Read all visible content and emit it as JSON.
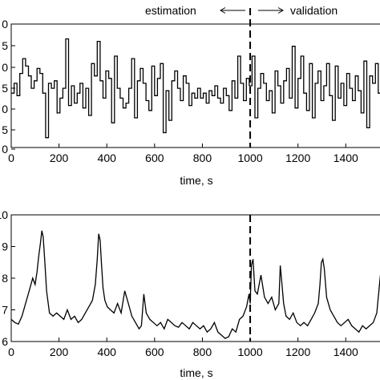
{
  "chart_data": [
    {
      "type": "line",
      "subtype": "step",
      "xlabel": "time, s",
      "ylabel": "",
      "xlim": [
        0,
        1550
      ],
      "ylim": [
        0,
        5
      ],
      "x_ticks": [
        0,
        200,
        400,
        600,
        800,
        1000,
        1200,
        1400
      ],
      "y_tick_labels": [
        "0",
        "5",
        "0",
        "5",
        "0",
        "5",
        "0"
      ],
      "grid": false,
      "annotations": {
        "divider_x": 1000,
        "estimation_label": "estimation",
        "validation_label": "validation"
      },
      "series": [
        {
          "x": [
            0,
            12,
            24,
            36,
            48,
            60,
            72,
            84,
            96,
            108,
            120,
            132,
            144,
            156,
            168,
            180,
            192,
            204,
            216,
            228,
            240,
            252,
            264,
            276,
            288,
            300,
            312,
            324,
            336,
            348,
            360,
            372,
            384,
            396,
            408,
            420,
            432,
            444,
            456,
            468,
            480,
            492,
            504,
            516,
            528,
            540,
            552,
            564,
            576,
            588,
            600,
            612,
            624,
            636,
            648,
            660,
            672,
            684,
            696,
            708,
            720,
            732,
            744,
            756,
            768,
            780,
            792,
            804,
            816,
            828,
            840,
            852,
            864,
            876,
            888,
            900,
            912,
            924,
            936,
            948,
            960,
            972,
            984,
            996,
            1008,
            1020,
            1032,
            1044,
            1056,
            1068,
            1080,
            1092,
            1104,
            1116,
            1128,
            1140,
            1152,
            1164,
            1176,
            1188,
            1200,
            1212,
            1224,
            1236,
            1248,
            1260,
            1272,
            1284,
            1296,
            1308,
            1320,
            1332,
            1344,
            1356,
            1368,
            1380,
            1392,
            1404,
            1416,
            1428,
            1440,
            1452,
            1464,
            1476,
            1488,
            1500,
            1512,
            1524,
            1536,
            1548
          ],
          "y": [
            2.2,
            2.6,
            2.1,
            3.0,
            3.6,
            3.3,
            2.9,
            2.4,
            2.7,
            3.2,
            3.0,
            2.2,
            0.4,
            2.6,
            2.4,
            2.7,
            1.4,
            2.0,
            2.4,
            4.4,
            1.7,
            2.5,
            1.8,
            2.2,
            2.6,
            1.6,
            2.4,
            1.3,
            3.4,
            2.9,
            4.3,
            2.7,
            2.0,
            3.1,
            2.8,
            1.0,
            3.7,
            2.4,
            2.0,
            1.6,
            1.8,
            2.4,
            3.6,
            1.2,
            2.7,
            3.2,
            2.6,
            1.9,
            1.5,
            3.3,
            2.1,
            2.8,
            3.4,
            0.6,
            2.3,
            1.1,
            2.7,
            3.1,
            2.4,
            1.9,
            2.9,
            2.6,
            1.7,
            2.2,
            2.0,
            2.4,
            2.0,
            2.2,
            1.8,
            2.3,
            2.1,
            2.5,
            2.0,
            1.8,
            2.4,
            2.1,
            1.5,
            2.7,
            2.0,
            3.7,
            2.6,
            1.9,
            2.8,
            2.5,
            3.7,
            1.2,
            2.4,
            3.0,
            2.6,
            1.9,
            2.3,
            1.4,
            3.1,
            2.5,
            1.8,
            2.7,
            3.2,
            2.0,
            4.1,
            1.6,
            2.8,
            3.7,
            2.2,
            1.5,
            3.4,
            1.2,
            2.6,
            3.1,
            1.9,
            2.5,
            3.4,
            2.1,
            1.1,
            3.3,
            2.0,
            2.6,
            1.7,
            3.0,
            2.4,
            1.9,
            2.9,
            2.3,
            1.4,
            3.5,
            0.8,
            2.9,
            2.6,
            3.4,
            2.2,
            2.5
          ]
        }
      ]
    },
    {
      "type": "line",
      "xlabel": "time, s",
      "ylabel": "",
      "xlim": [
        0,
        1550
      ],
      "ylim": [
        6,
        10
      ],
      "x_ticks": [
        0,
        200,
        400,
        600,
        800,
        1000,
        1200,
        1400
      ],
      "y_ticks": [
        6,
        7,
        8,
        9,
        10
      ],
      "grid": false,
      "annotations": {
        "divider_x": 1000
      },
      "series": [
        {
          "x": [
            0,
            15,
            30,
            45,
            60,
            75,
            90,
            100,
            108,
            115,
            122,
            128,
            134,
            140,
            148,
            160,
            175,
            190,
            205,
            220,
            235,
            250,
            265,
            280,
            295,
            310,
            325,
            340,
            352,
            360,
            366,
            372,
            378,
            384,
            392,
            402,
            415,
            430,
            445,
            460,
            475,
            490,
            505,
            520,
            535,
            545,
            555,
            565,
            580,
            595,
            610,
            625,
            640,
            655,
            670,
            685,
            700,
            715,
            730,
            745,
            760,
            775,
            790,
            805,
            820,
            835,
            850,
            865,
            880,
            895,
            910,
            925,
            940,
            955,
            970,
            985,
            995,
            1000,
            1005,
            1012,
            1020,
            1030,
            1045,
            1060,
            1075,
            1090,
            1105,
            1120,
            1126,
            1132,
            1140,
            1150,
            1165,
            1180,
            1195,
            1210,
            1225,
            1240,
            1255,
            1270,
            1285,
            1292,
            1298,
            1304,
            1310,
            1320,
            1335,
            1350,
            1365,
            1380,
            1395,
            1410,
            1425,
            1440,
            1455,
            1470,
            1485,
            1500,
            1515,
            1530,
            1545
          ],
          "y": [
            6.7,
            6.6,
            6.55,
            6.8,
            7.2,
            7.6,
            8.0,
            7.8,
            8.2,
            8.7,
            9.1,
            9.5,
            9.3,
            8.6,
            7.6,
            6.9,
            6.8,
            6.9,
            6.8,
            6.7,
            7.0,
            6.7,
            6.8,
            6.6,
            6.7,
            6.9,
            7.1,
            7.3,
            7.8,
            8.6,
            9.4,
            9.2,
            8.4,
            7.7,
            7.3,
            7.1,
            7.0,
            6.9,
            7.2,
            6.9,
            7.6,
            7.2,
            6.8,
            6.6,
            6.4,
            6.5,
            7.5,
            6.9,
            6.7,
            6.6,
            6.5,
            6.6,
            6.4,
            6.7,
            6.6,
            6.5,
            6.45,
            6.6,
            6.5,
            6.4,
            6.6,
            6.5,
            6.4,
            6.5,
            6.3,
            6.4,
            6.6,
            6.3,
            6.2,
            6.1,
            6.15,
            6.4,
            6.3,
            6.7,
            6.8,
            7.1,
            7.5,
            7.2,
            8.4,
            8.6,
            7.6,
            7.5,
            8.1,
            7.4,
            7.2,
            7.4,
            7.0,
            7.2,
            8.4,
            7.9,
            7.2,
            6.8,
            6.7,
            6.9,
            6.6,
            6.5,
            6.6,
            6.5,
            6.7,
            6.9,
            7.2,
            7.8,
            8.5,
            8.6,
            8.3,
            7.4,
            7.0,
            6.8,
            6.6,
            6.5,
            6.6,
            6.7,
            6.5,
            6.4,
            6.3,
            6.5,
            6.4,
            6.5,
            6.6,
            6.9,
            8.1
          ]
        }
      ]
    }
  ]
}
